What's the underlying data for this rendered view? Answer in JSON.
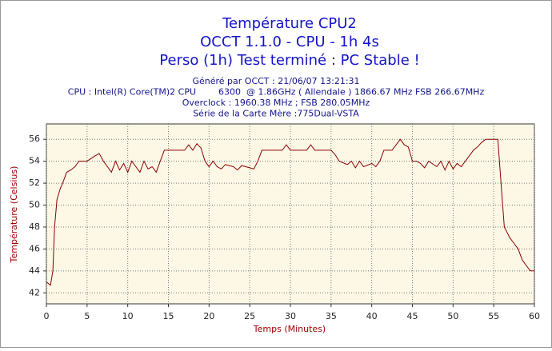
{
  "chart_data": {
    "type": "line",
    "title_lines": [
      "Température CPU2",
      "OCCT 1.1.0 - CPU - 1h 4s",
      "Perso (1h) Test terminé : PC Stable !"
    ],
    "subtitle_lines": [
      "Généré par OCCT : 21/06/07 13:21:31",
      "CPU : Intel(R) Core(TM)2 CPU        6300  @ 1.86GHz ( Allendale ) 1866.67 MHz FSB 266.67MHz",
      "Overclock : 1960.38 MHz ; FSB 280.05MHz",
      "Série de la Carte Mère :775Dual-VSTA"
    ],
    "x_label": "Temps (Minutes)",
    "y_label": "Température (Celsius)",
    "xlim": [
      0,
      60
    ],
    "xticks": [
      0,
      5,
      10,
      15,
      20,
      25,
      30,
      35,
      40,
      45,
      50,
      55,
      60
    ],
    "ylim": [
      41,
      57.4
    ],
    "yticks": [
      42,
      44,
      46,
      48,
      50,
      52,
      54,
      56
    ],
    "grid": true,
    "series": [
      {
        "name": "Température",
        "color": "#8b0000",
        "x": [
          0,
          0.5,
          0.8,
          1,
          1.3,
          1.7,
          2,
          2.5,
          3,
          3.5,
          4,
          5,
          6,
          6.5,
          7,
          7.5,
          8,
          8.5,
          9,
          9.5,
          10,
          10.5,
          11,
          11.5,
          12,
          12.5,
          13,
          13.5,
          14,
          14.5,
          15,
          17,
          17.5,
          18,
          18.5,
          19,
          19.5,
          20,
          20.5,
          21,
          21.5,
          22,
          23,
          23.5,
          24,
          25,
          25.5,
          26,
          26.5,
          29,
          29.5,
          30,
          32,
          32.5,
          33,
          35,
          35.5,
          36,
          37,
          37.5,
          38,
          38.5,
          39,
          40,
          40.5,
          41,
          41.5,
          42.5,
          43,
          43.5,
          44,
          44.5,
          45,
          45.5,
          46,
          46.5,
          47,
          48,
          48.5,
          49,
          49.5,
          50,
          50.5,
          51,
          52,
          52.5,
          53,
          53.5,
          54,
          55.5,
          56,
          56.3,
          57,
          57.5,
          58,
          58.5,
          59,
          59.5,
          60
        ],
        "values": [
          43,
          42.7,
          44,
          48,
          50.5,
          51.5,
          52,
          53,
          53.2,
          53.5,
          54,
          54,
          54.5,
          54.7,
          54,
          53.5,
          53,
          54,
          53.2,
          53.8,
          53,
          54,
          53.5,
          53,
          54,
          53.3,
          53.5,
          53,
          54,
          55,
          55,
          55,
          55.5,
          55,
          55.6,
          55.2,
          54,
          53.5,
          54,
          53.5,
          53.3,
          53.7,
          53.5,
          53.2,
          53.6,
          53.4,
          53.3,
          54,
          55,
          55,
          55.5,
          55,
          55,
          55.5,
          55,
          55,
          54.6,
          54,
          53.7,
          54,
          53.4,
          54,
          53.5,
          53.8,
          53.5,
          54,
          55,
          55,
          55.5,
          56,
          55.5,
          55.3,
          54,
          54,
          53.8,
          53.4,
          54,
          53.5,
          54,
          53.2,
          54,
          53.3,
          53.8,
          53.5,
          54.5,
          55,
          55.3,
          55.7,
          56,
          56,
          51,
          48,
          47,
          46.5,
          46,
          45,
          44.5,
          44,
          44
        ]
      }
    ]
  }
}
